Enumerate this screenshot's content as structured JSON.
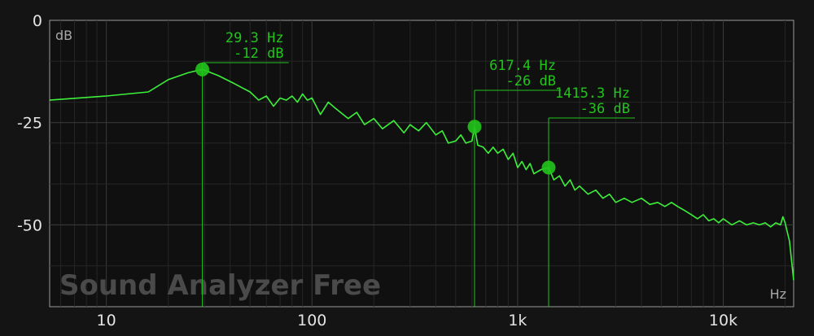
{
  "app": {
    "watermark": "Sound Analyzer Free"
  },
  "colors": {
    "background": "#141414",
    "plot_background": "#101010",
    "grid": "#2e2e2e",
    "trace": "#3cf03a",
    "peak": "#22c41c",
    "tick_text": "#e4e4e4"
  },
  "chart_data": {
    "type": "line",
    "title": "",
    "xlabel": "Hz",
    "ylabel": "dB",
    "x_scale": "log",
    "xlim": [
      5.3,
      22000
    ],
    "ylim": [
      -70,
      0
    ],
    "x_ticks": [
      {
        "value": 10,
        "label": "10"
      },
      {
        "value": 100,
        "label": "100"
      },
      {
        "value": 1000,
        "label": "1k"
      },
      {
        "value": 10000,
        "label": "10k"
      }
    ],
    "y_ticks": [
      {
        "value": 0,
        "label": "0"
      },
      {
        "value": -25,
        "label": "-25"
      },
      {
        "value": -50,
        "label": "-50"
      }
    ],
    "grid": true,
    "series": [
      {
        "x": [
          5.3,
          10,
          16,
          20,
          25,
          29.3,
          35,
          42,
          50,
          55,
          60,
          65,
          70,
          75,
          80,
          85,
          90,
          95,
          100,
          110,
          120,
          130,
          150,
          165,
          180,
          200,
          220,
          250,
          280,
          300,
          330,
          360,
          400,
          430,
          460,
          500,
          530,
          560,
          600,
          617.4,
          640,
          680,
          720,
          760,
          800,
          850,
          900,
          950,
          1000,
          1050,
          1100,
          1150,
          1200,
          1300,
          1415.3,
          1500,
          1600,
          1700,
          1800,
          1900,
          2000,
          2200,
          2400,
          2600,
          2800,
          3000,
          3300,
          3600,
          4000,
          4400,
          4800,
          5200,
          5600,
          6000,
          6500,
          7000,
          7500,
          8000,
          8500,
          9000,
          9500,
          10000,
          11000,
          12000,
          13000,
          14000,
          15000,
          16000,
          17000,
          18000,
          19000,
          19500,
          20000,
          21000,
          22000
        ],
        "y": [
          -19.5,
          -18.5,
          -17.5,
          -14.5,
          -12.8,
          -12,
          -13.5,
          -15.5,
          -17.5,
          -19.5,
          -18.5,
          -21,
          -19,
          -19.5,
          -18.5,
          -20,
          -18,
          -19.5,
          -19,
          -23,
          -20,
          -21.5,
          -24,
          -22.5,
          -25.5,
          -24,
          -26.5,
          -24.5,
          -27.5,
          -25.5,
          -27,
          -25,
          -28,
          -27,
          -30,
          -29.5,
          -28,
          -30,
          -29.5,
          -26,
          -30.5,
          -31,
          -32.5,
          -31,
          -32.5,
          -31.5,
          -34,
          -32.5,
          -36,
          -34.5,
          -36.5,
          -35,
          -37.5,
          -36.5,
          -36,
          -39,
          -38,
          -40.5,
          -39,
          -41.5,
          -40.5,
          -42.5,
          -41.5,
          -43.5,
          -42.5,
          -44.5,
          -43.5,
          -44.5,
          -43.5,
          -45,
          -44.5,
          -45.5,
          -44.5,
          -45.5,
          -46.5,
          -47.5,
          -48.5,
          -47.5,
          -49,
          -48.5,
          -49.5,
          -48.5,
          -50,
          -49,
          -50,
          -49.5,
          -50,
          -49.5,
          -50.5,
          -49.5,
          -50,
          -48,
          -49.5,
          -54,
          -63.5
        ]
      }
    ],
    "peaks": [
      {
        "freq": 29.3,
        "db": -12,
        "freq_label": "29.3 Hz",
        "db_label": "-12 dB"
      },
      {
        "freq": 617.4,
        "db": -26,
        "freq_label": "617.4 Hz",
        "db_label": "-26 dB"
      },
      {
        "freq": 1415.3,
        "db": -36,
        "freq_label": "1415.3 Hz",
        "db_label": "-36 dB"
      }
    ]
  }
}
